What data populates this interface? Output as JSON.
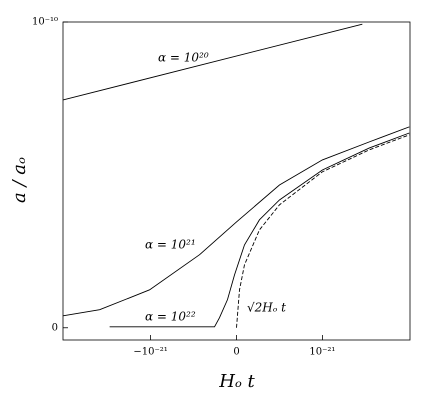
{
  "chart_data": {
    "type": "line",
    "xlabel": "Hₒ t",
    "ylabel": "a / aₒ",
    "xlim": [
      -2.02e-21,
      2.02e-21
    ],
    "ylim": [
      -4e-12,
      1e-10
    ],
    "xticks": [
      {
        "value": -1e-21,
        "label": "−10⁻²¹"
      },
      0,
      {
        "value": 1e-21,
        "label": "10⁻²¹"
      }
    ],
    "yticks": [
      0,
      {
        "value": 1e-10,
        "label": "10⁻¹⁰"
      }
    ],
    "color": "#000000",
    "annotations": [
      "α = 10²⁰",
      "α = 10²¹",
      "α = 10²²",
      "√2Hₒ t"
    ],
    "series": [
      {
        "x": [
          -2.02e-21,
          1.465e-21
        ],
        "values": [
          7.45e-11,
          9.93e-11
        ]
      },
      {
        "x": [
          -2.02e-21,
          -1.593e-21,
          -1.012e-21,
          -4.3e-22,
          0,
          5e-22,
          1e-21,
          1.547e-21,
          2.012e-21
        ],
        "values": [
          3.9e-12,
          5.9e-12,
          1.24e-11,
          2.39e-11,
          3.46e-11,
          4.67e-11,
          5.49e-11,
          6.08e-11,
          6.57e-11
        ]
      },
      {
        "x": [
          -1.477e-21,
          -2.56e-22,
          -1.98e-22,
          -1.05e-22,
          -2.3e-23,
          9.3e-23,
          2.67e-22,
          5e-22,
          1e-21,
          1.547e-21,
          2.012e-21
        ],
        "values": [
          3e-13,
          3e-13,
          3.3e-12,
          9.2e-12,
          1.73e-11,
          2.71e-11,
          3.53e-11,
          4.18e-11,
          5.16e-11,
          5.88e-11,
          6.37e-11
        ]
      },
      {
        "x": [
          0,
          3.5e-23,
          9.3e-23,
          2.67e-22,
          5e-22,
          1e-21,
          1.547e-21,
          2.012e-21
        ],
        "values": [
          0,
          1.24e-11,
          2.06e-11,
          3.2e-11,
          4.02e-11,
          5.1e-11,
          5.82e-11,
          6.31e-11
        ],
        "dashed": true
      }
    ]
  }
}
